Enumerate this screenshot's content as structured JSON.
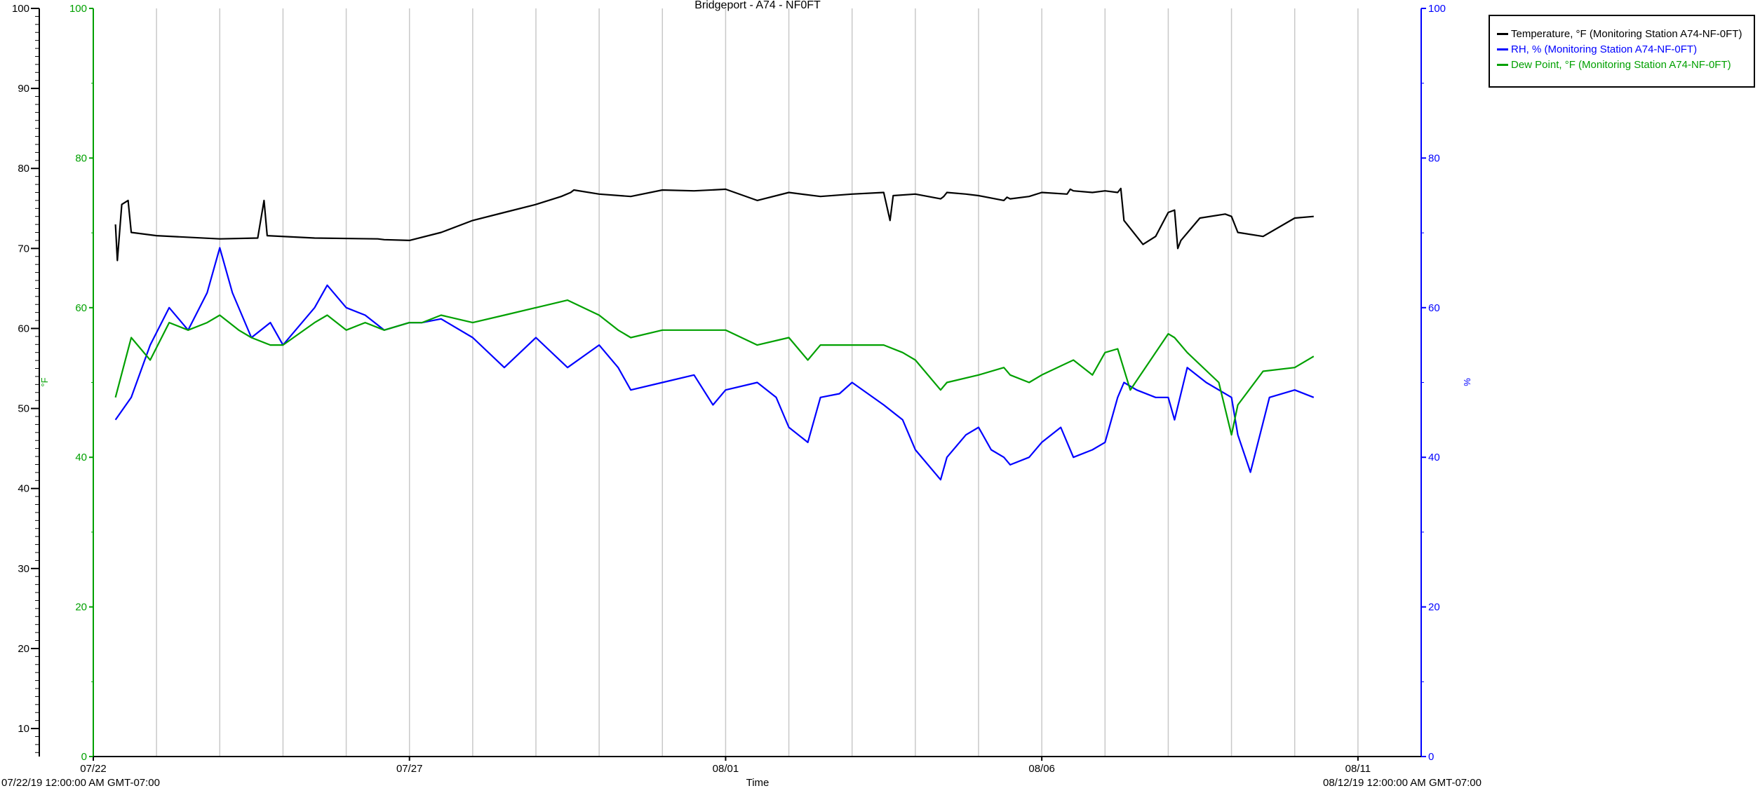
{
  "chart_data": {
    "type": "line",
    "title": "Bridgeport - A74 - NF0FT",
    "xlabel": "Time",
    "x_ticks": [
      "07/22",
      "07/27",
      "08/01",
      "08/06",
      "08/11"
    ],
    "x_range_labels": {
      "start": "07/22/19 12:00:00 AM GMT-07:00",
      "end": "08/12/19 12:00:00 AM GMT-07:00"
    },
    "xlim_days": [
      0,
      21
    ],
    "grid": "vertical",
    "legend_position": "top-right",
    "axes": [
      {
        "id": "temp",
        "label": "",
        "color": "#000000",
        "ylim": [
          6.5,
          100
        ],
        "ticks": [
          10,
          20,
          30,
          40,
          50,
          60,
          70,
          80,
          90,
          100
        ]
      },
      {
        "id": "dew",
        "label": "°F",
        "color": "#00a000",
        "ylim": [
          0,
          100
        ],
        "ticks": [
          0,
          20,
          40,
          60,
          80,
          100
        ]
      },
      {
        "id": "rh",
        "label": "%",
        "color": "#0000ff",
        "ylim": [
          0,
          100
        ],
        "ticks": [
          0,
          20,
          40,
          60,
          80,
          100
        ]
      }
    ],
    "series": [
      {
        "name": "Temperature, °F (Monitoring Station A74-NF-0FT)",
        "color": "#000000",
        "axis": "temp",
        "x": [
          0.35,
          0.38,
          0.45,
          0.55,
          0.6,
          1.0,
          2.0,
          2.6,
          2.7,
          2.75,
          3.5,
          4.5,
          4.6,
          5.0,
          5.5,
          6.0,
          6.5,
          7.0,
          7.4,
          7.55,
          7.6,
          8.0,
          8.5,
          9.0,
          9.5,
          10.0,
          10.5,
          11.0,
          11.5,
          12.0,
          12.5,
          12.6,
          12.65,
          13.0,
          13.4,
          13.45,
          13.5,
          13.8,
          14.0,
          14.4,
          14.45,
          14.5,
          14.8,
          15.0,
          15.4,
          15.45,
          15.5,
          15.8,
          16.0,
          16.2,
          16.25,
          16.3,
          16.6,
          16.8,
          17.0,
          17.1,
          17.15,
          17.2,
          17.5,
          17.9,
          18.0,
          18.1,
          18.5,
          19.0,
          19.3
        ],
        "y": [
          73.0,
          68.5,
          75.5,
          76.0,
          72.0,
          71.6,
          71.2,
          71.3,
          76.0,
          71.6,
          71.3,
          71.2,
          71.1,
          71.0,
          72.0,
          73.5,
          74.5,
          75.5,
          76.5,
          77.0,
          77.3,
          76.8,
          76.5,
          77.3,
          77.2,
          77.4,
          76.0,
          77.0,
          76.5,
          76.8,
          77.0,
          73.5,
          76.6,
          76.8,
          76.2,
          76.5,
          77.0,
          76.8,
          76.6,
          76.0,
          76.4,
          76.2,
          76.5,
          77.0,
          76.8,
          77.4,
          77.2,
          77.0,
          77.2,
          77.0,
          77.5,
          73.5,
          70.5,
          71.5,
          74.5,
          74.8,
          70.0,
          71.0,
          73.8,
          74.3,
          74.0,
          72.0,
          71.5,
          73.8,
          74.0
        ]
      },
      {
        "name": "RH, % (Monitoring Station A74-NF-0FT)",
        "color": "#0000ff",
        "axis": "rh",
        "x": [
          0.35,
          0.6,
          0.9,
          1.2,
          1.5,
          1.8,
          2.0,
          2.2,
          2.5,
          2.8,
          3.0,
          3.5,
          3.7,
          4.0,
          4.3,
          4.6,
          5.0,
          5.2,
          5.5,
          6.0,
          6.5,
          7.0,
          7.5,
          8.0,
          8.3,
          8.5,
          9.0,
          9.5,
          9.8,
          10.0,
          10.5,
          10.8,
          11.0,
          11.3,
          11.5,
          11.8,
          12.0,
          12.5,
          12.8,
          13.0,
          13.4,
          13.5,
          13.8,
          14.0,
          14.2,
          14.4,
          14.5,
          14.8,
          15.0,
          15.3,
          15.5,
          15.8,
          16.0,
          16.2,
          16.3,
          16.5,
          16.8,
          17.0,
          17.1,
          17.3,
          17.6,
          18.0,
          18.1,
          18.3,
          18.6,
          19.0,
          19.3
        ],
        "y": [
          45.0,
          48.0,
          55.0,
          60.0,
          57.0,
          62.0,
          68.0,
          62.0,
          56.0,
          58.0,
          55.0,
          60.0,
          63.0,
          60.0,
          59.0,
          57.0,
          58.0,
          58.0,
          58.5,
          56.0,
          52.0,
          56.0,
          52.0,
          55.0,
          52.0,
          49.0,
          50.0,
          51.0,
          47.0,
          49.0,
          50.0,
          48.0,
          44.0,
          42.0,
          48.0,
          48.5,
          50.0,
          47.0,
          45.0,
          41.0,
          37.0,
          40.0,
          43.0,
          44.0,
          41.0,
          40.0,
          39.0,
          40.0,
          42.0,
          44.0,
          40.0,
          41.0,
          42.0,
          48.0,
          50.0,
          49.0,
          48.0,
          48.0,
          45.0,
          52.0,
          50.0,
          48.0,
          43.0,
          38.0,
          48.0,
          49.0,
          48.0
        ]
      },
      {
        "name": "Dew Point, °F (Monitoring Station A74-NF-0FT)",
        "color": "#00a000",
        "axis": "dew",
        "x": [
          0.35,
          0.6,
          0.9,
          1.2,
          1.5,
          1.8,
          2.0,
          2.3,
          2.5,
          2.8,
          3.0,
          3.5,
          3.7,
          4.0,
          4.3,
          4.6,
          5.0,
          5.2,
          5.5,
          6.0,
          6.5,
          7.0,
          7.5,
          8.0,
          8.3,
          8.5,
          9.0,
          9.5,
          10.0,
          10.5,
          11.0,
          11.3,
          11.5,
          12.0,
          12.5,
          12.8,
          13.0,
          13.4,
          13.5,
          14.0,
          14.4,
          14.5,
          14.8,
          15.0,
          15.5,
          15.8,
          16.0,
          16.2,
          16.4,
          16.8,
          17.0,
          17.1,
          17.3,
          17.8,
          18.0,
          18.1,
          18.5,
          19.0,
          19.3
        ],
        "y": [
          48.0,
          56.0,
          53.0,
          58.0,
          57.0,
          58.0,
          59.0,
          57.0,
          56.0,
          55.0,
          55.0,
          58.0,
          59.0,
          57.0,
          58.0,
          57.0,
          58.0,
          58.0,
          59.0,
          58.0,
          59.0,
          60.0,
          61.0,
          59.0,
          57.0,
          56.0,
          57.0,
          57.0,
          57.0,
          55.0,
          56.0,
          53.0,
          55.0,
          55.0,
          55.0,
          54.0,
          53.0,
          49.0,
          50.0,
          51.0,
          52.0,
          51.0,
          50.0,
          51.0,
          53.0,
          51.0,
          54.0,
          54.5,
          49.0,
          54.0,
          56.5,
          56.0,
          54.0,
          50.0,
          43.0,
          47.0,
          51.5,
          52.0,
          53.5
        ]
      }
    ]
  }
}
